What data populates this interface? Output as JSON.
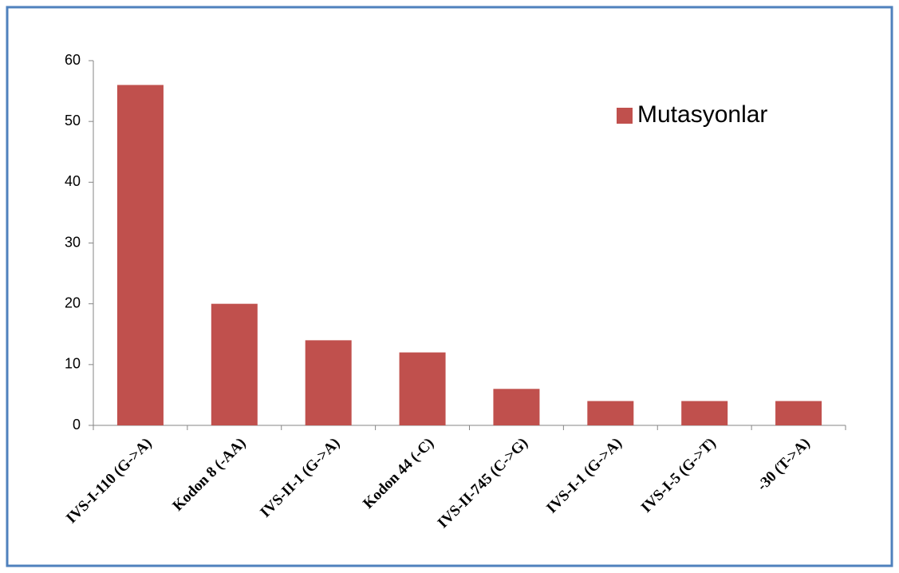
{
  "chart_data": {
    "type": "bar",
    "categories": [
      "IVS-I-110 (G->A)",
      "Kodon 8 (-AA)",
      "IVS-II-1 (G->A)",
      "Kodon 44 (-C)",
      "IVS-II-745 (C->G)",
      "IVS-I-1 (G->A)",
      "IVS-I-5 (G->T)",
      "-30 (T->A)"
    ],
    "series": [
      {
        "name": "Mutasyonlar",
        "color": "#c0504d",
        "values": [
          56,
          20,
          14,
          12,
          6,
          4,
          4,
          4
        ]
      }
    ],
    "ylim": [
      0,
      60
    ],
    "yticks": [
      0,
      10,
      20,
      30,
      40,
      50,
      60
    ],
    "grid": false,
    "legend": "top-right"
  }
}
